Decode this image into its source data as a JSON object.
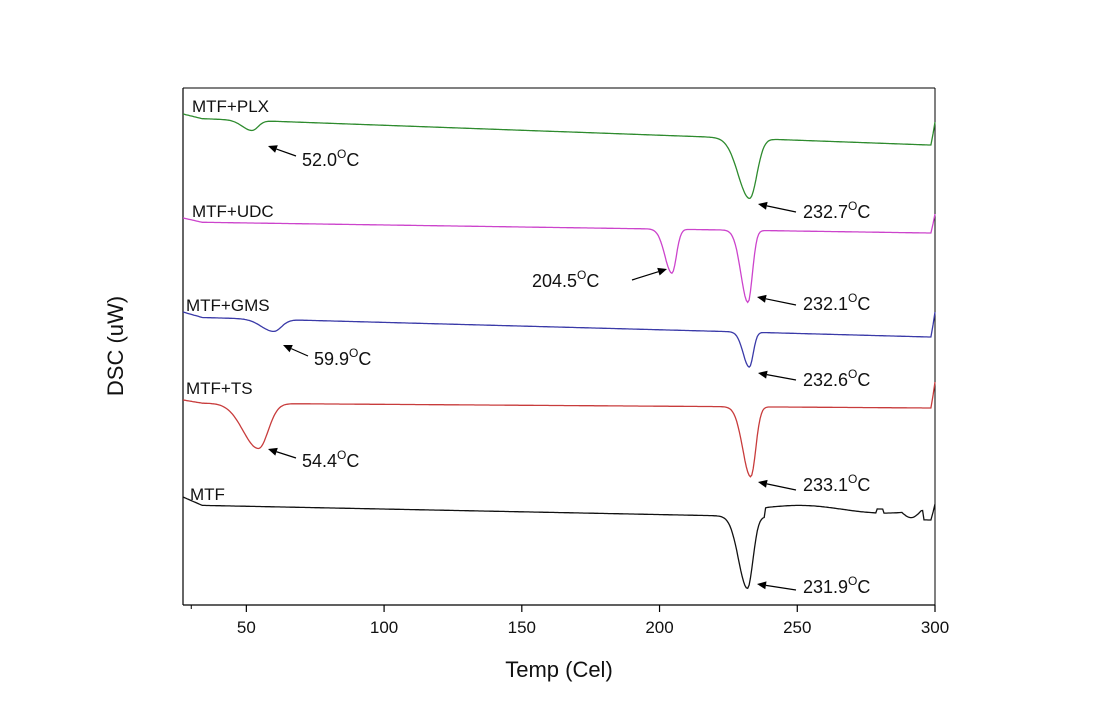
{
  "chart_data": {
    "type": "line",
    "xlabel": "Temp (Cel)",
    "ylabel": "DSC (uW)",
    "xlim": [
      27,
      300
    ],
    "xticks": [
      50,
      100,
      150,
      200,
      250,
      300
    ],
    "grid": false,
    "series": [
      {
        "name": "MTF+PLX",
        "color": "#2e8b2e",
        "peaks": [
          {
            "temp": 52.0,
            "label": "52.0",
            "unit": "C"
          },
          {
            "temp": 232.7,
            "label": "232.7",
            "unit": "C"
          }
        ]
      },
      {
        "name": "MTF+UDC",
        "color": "#cc44cc",
        "peaks": [
          {
            "temp": 204.5,
            "label": "204.5",
            "unit": "C"
          },
          {
            "temp": 232.1,
            "label": "232.1",
            "unit": "C"
          }
        ]
      },
      {
        "name": "MTF+GMS",
        "color": "#3a3aa8",
        "peaks": [
          {
            "temp": 59.9,
            "label": "59.9",
            "unit": "C"
          },
          {
            "temp": 232.6,
            "label": "232.6",
            "unit": "C"
          }
        ]
      },
      {
        "name": "MTF+TS",
        "color": "#c83c3c",
        "peaks": [
          {
            "temp": 54.4,
            "label": "54.4",
            "unit": "C"
          },
          {
            "temp": 233.1,
            "label": "233.1",
            "unit": "C"
          }
        ]
      },
      {
        "name": "MTF",
        "color": "#111111",
        "peaks": [
          {
            "temp": 231.9,
            "label": "231.9",
            "unit": "C"
          }
        ]
      }
    ]
  }
}
